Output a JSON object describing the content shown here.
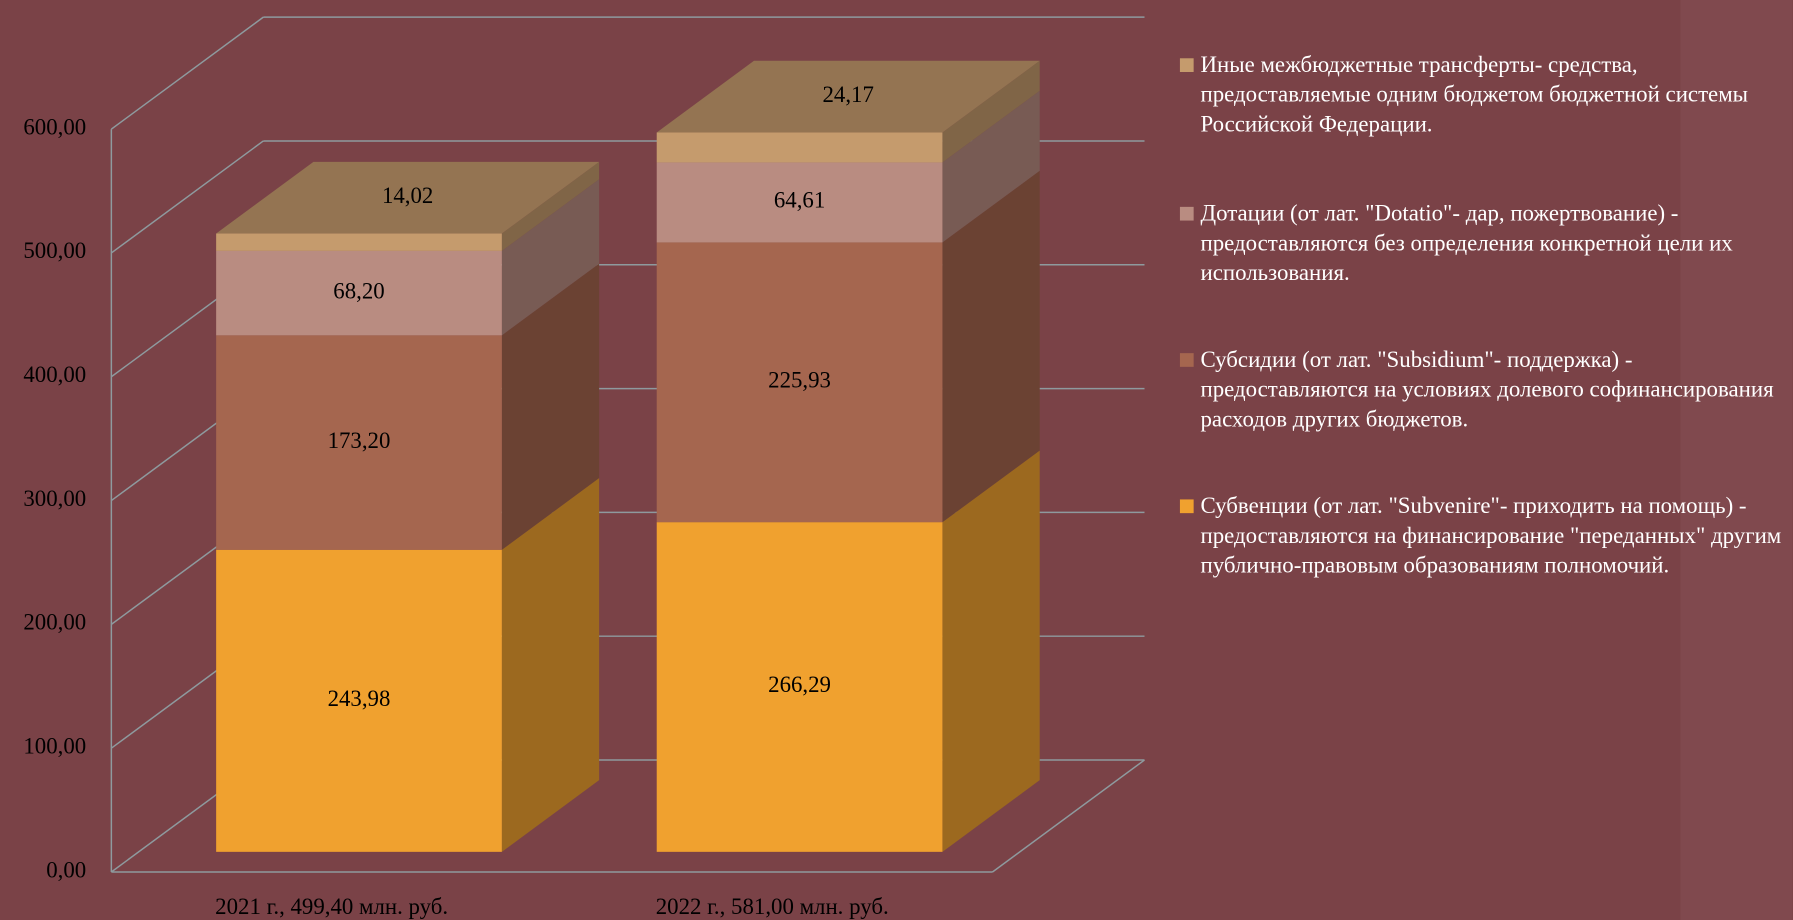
{
  "chart_data": {
    "type": "bar3d_stacked",
    "categories": [
      "2021 г., 499,40 млн. руб.",
      "2022 г., 581,00 млн. руб."
    ],
    "series": [
      {
        "name": "Субвенции (от лат. \"Subvenire\"- приходить на помощь) - предоставляются на финансирование \"переданных\" другим публично-правовым образованиям полномочий.",
        "color": "#f0a12f",
        "values": [
          243.98,
          266.29
        ],
        "value_labels": [
          "243,98",
          "266,29"
        ]
      },
      {
        "name": "Субсидии (от лат. \"Subsidium\"- поддержка) - предоставляются на условиях долевого софинансирования расходов других бюджетов.",
        "color": "#a5664f",
        "values": [
          173.2,
          225.93
        ],
        "value_labels": [
          "173,20",
          "225,93"
        ]
      },
      {
        "name": "Дотации (от лат. \"Dotatio\"- дар, пожертвование) - предоставляются без определения конкретной цели их использования.",
        "color": "#b98c81",
        "values": [
          68.2,
          64.61
        ],
        "value_labels": [
          "68,20",
          "64,61"
        ]
      },
      {
        "name": "Иные межбюджетные трансферты- средства, предоставляемые одним бюджетом бюджетной системы Российской Федерации.",
        "color": "#c59b6d",
        "values": [
          14.02,
          24.17
        ],
        "value_labels": [
          "14,02",
          "24,17"
        ]
      }
    ],
    "ylim": [
      0,
      600
    ],
    "yticks": [
      {
        "value": 0,
        "label": "0,00"
      },
      {
        "value": 100,
        "label": "100,00"
      },
      {
        "value": 200,
        "label": "200,00"
      },
      {
        "value": 300,
        "label": "300,00"
      },
      {
        "value": 400,
        "label": "400,00"
      },
      {
        "value": 500,
        "label": "500,00"
      },
      {
        "value": 600,
        "label": "600,00"
      }
    ],
    "grid": true,
    "legend": "right"
  }
}
